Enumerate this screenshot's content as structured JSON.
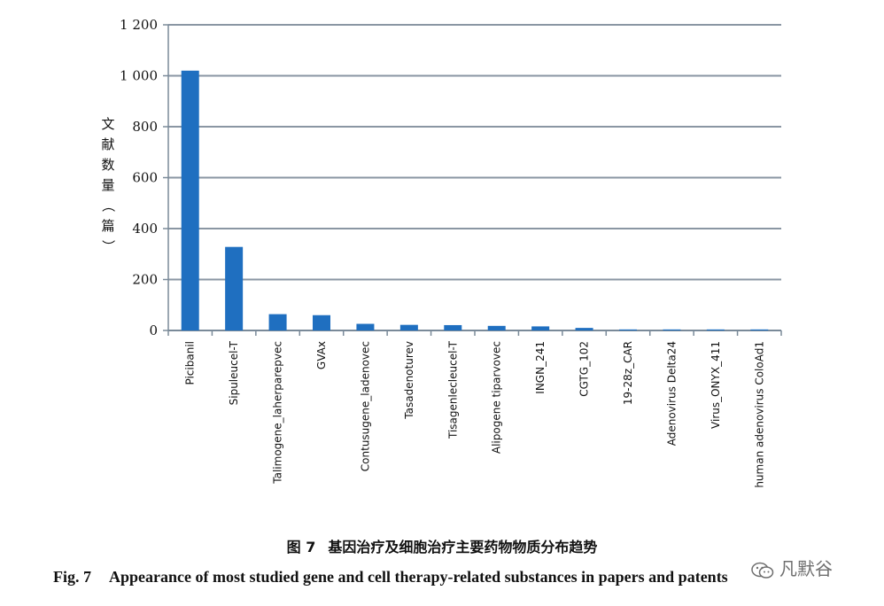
{
  "chart_data": {
    "type": "bar",
    "categories": [
      "Picibanil",
      "Sipuleucel-T",
      "Talimogene_laherparepvec",
      "GVAx",
      "Contusugene_ladenovec",
      "Tasadenoturev",
      "Tisagenlecleucel-T",
      "Alipogene tiparvovec",
      "INGN_241",
      "CGTG_102",
      "19-28z_CAR",
      "Adenovirus Delta24",
      "Virus_ONYX_411",
      "human adenovirus ColoAd1"
    ],
    "values": [
      1020,
      328,
      64,
      60,
      26,
      22,
      21,
      18,
      16,
      10,
      4,
      4,
      4,
      4
    ],
    "ylabel_chars": [
      "文",
      "献",
      "数",
      "量",
      "（",
      "篇",
      "）"
    ],
    "yticks": [
      0,
      200,
      400,
      600,
      800,
      1000,
      1200
    ],
    "ytick_labels": [
      "0",
      "200",
      "400",
      "600",
      "800",
      "1 000",
      "1 200"
    ],
    "ylim": [
      0,
      1200
    ],
    "grid": true,
    "bar_color": "#1f6fc0"
  },
  "caption": {
    "cn_fig": "图 7",
    "cn_text": "基因治疗及细胞治疗主要药物物质分布趋势",
    "en_fig": "Fig. 7",
    "en_text": "Appearance of most studied gene and cell therapy-related substances in papers and patents"
  },
  "watermark": {
    "text": "凡默谷",
    "icon": "wechat-icon"
  }
}
